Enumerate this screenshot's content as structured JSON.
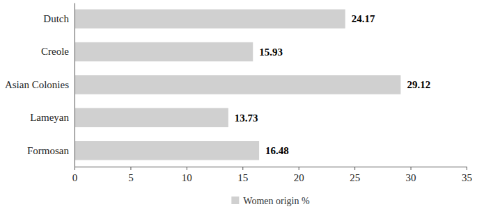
{
  "chart_data": {
    "type": "bar",
    "orientation": "horizontal",
    "categories": [
      "Dutch",
      "Creole",
      "Asian Colonies",
      "Lameyan",
      "Formosan"
    ],
    "series": [
      {
        "name": "Women origin %",
        "color": "#d0d0d0",
        "values": [
          24.17,
          15.93,
          29.12,
          13.73,
          16.48
        ]
      }
    ],
    "xlim": [
      0,
      35
    ],
    "xticks": [
      0,
      5,
      10,
      15,
      20,
      25,
      30,
      35
    ],
    "data_labels": true,
    "legend": "bottom",
    "grid": false
  }
}
